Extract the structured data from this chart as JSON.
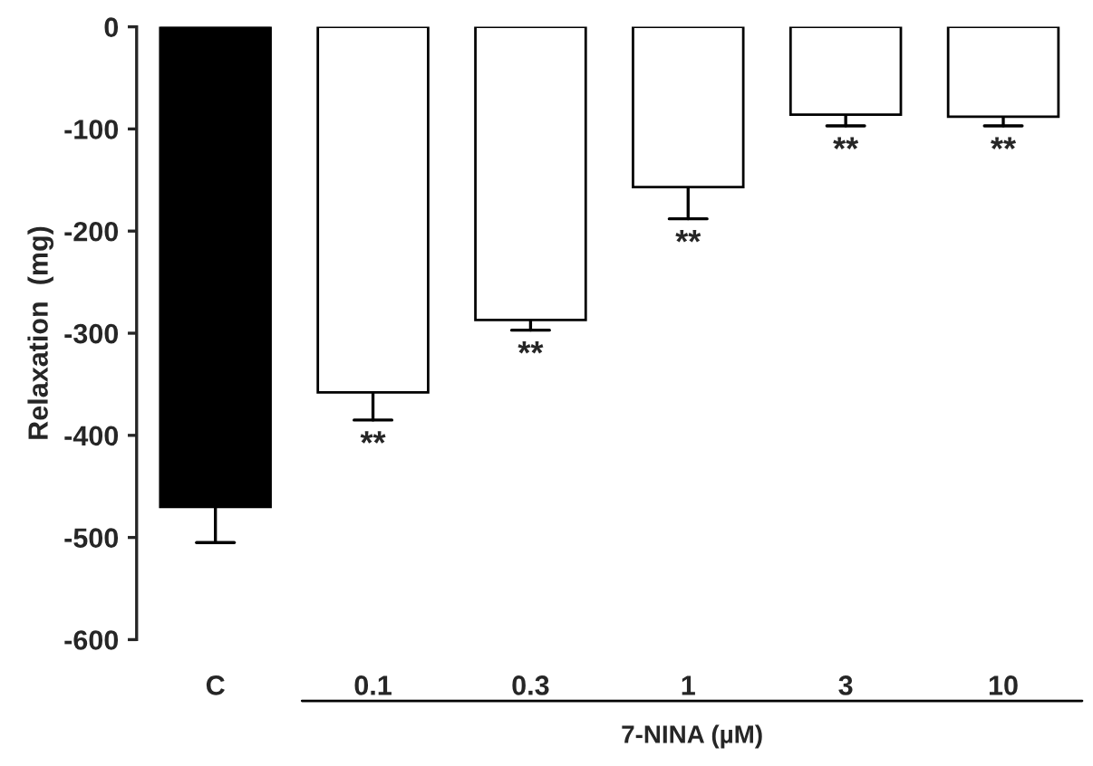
{
  "chart_data": {
    "type": "bar",
    "ylabel": "Relaxation  (mg)",
    "xlabel": "7-NINA (µM)",
    "categories": [
      "C",
      "0.1",
      "0.3",
      "1",
      "3",
      "10"
    ],
    "values": [
      -470,
      -358,
      -287,
      -157,
      -86,
      -88
    ],
    "colors": [
      "#000000",
      "#ffffff",
      "#ffffff",
      "#ffffff",
      "#ffffff",
      "#ffffff"
    ],
    "errors": [
      [
        -505,
        -470
      ],
      [
        -385,
        -358
      ],
      [
        -297,
        -287
      ],
      [
        -188,
        -157
      ],
      [
        -97,
        -86
      ],
      [
        -97,
        -88
      ]
    ],
    "ylim": [
      -600,
      0
    ],
    "yticks": [
      -600,
      -500,
      -400,
      -300,
      -200,
      -100,
      0
    ],
    "grid": false,
    "annotations": [
      "**",
      "**",
      "**",
      "**",
      "**"
    ]
  }
}
